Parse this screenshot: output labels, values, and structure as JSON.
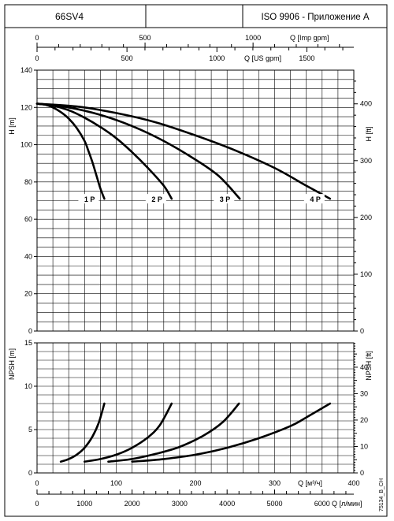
{
  "header": {
    "model": "66SV4",
    "middle": "",
    "standard": "ISO 9906 - Приложение A"
  },
  "footer_code": "75134_B_CH",
  "chart_data": [
    {
      "type": "line",
      "id": "head",
      "ylabel": "H [m]",
      "ylabel_right": "H [ft]",
      "ylim": [
        0,
        140
      ],
      "yticks": [
        0,
        20,
        40,
        60,
        80,
        100,
        120,
        140
      ],
      "yticks_right": [
        0,
        100,
        200,
        300,
        400
      ],
      "xlim_m3h": [
        0,
        400
      ],
      "top_axes": [
        {
          "label": "Q [Imp gpm]",
          "ticks": [
            0,
            500,
            1000
          ]
        },
        {
          "label": "Q [US gpm]",
          "ticks": [
            0,
            500,
            1000,
            1500
          ]
        }
      ],
      "grid": true,
      "series": [
        {
          "name": "1 P",
          "points": [
            [
              0,
              122
            ],
            [
              10,
              121.5
            ],
            [
              20,
              120
            ],
            [
              30,
              117.5
            ],
            [
              40,
              114
            ],
            [
              50,
              109
            ],
            [
              60,
              102
            ],
            [
              65,
              96.5
            ],
            [
              70,
              90.5
            ],
            [
              75,
              83.5
            ],
            [
              80,
              76.5
            ],
            [
              85,
              71
            ]
          ]
        },
        {
          "name": "2 P",
          "points": [
            [
              0,
              122
            ],
            [
              20,
              121
            ],
            [
              40,
              118.5
            ],
            [
              60,
              114.5
            ],
            [
              80,
              109.5
            ],
            [
              100,
              103.5
            ],
            [
              120,
              96
            ],
            [
              140,
              87.5
            ],
            [
              160,
              78
            ],
            [
              170,
              71
            ]
          ]
        },
        {
          "name": "3 P",
          "points": [
            [
              0,
              122
            ],
            [
              40,
              120
            ],
            [
              80,
              116
            ],
            [
              120,
              110
            ],
            [
              160,
              102
            ],
            [
              200,
              92
            ],
            [
              230,
              83
            ],
            [
              256,
              71
            ]
          ]
        },
        {
          "name": "4 P",
          "points": [
            [
              0,
              122
            ],
            [
              50,
              120.5
            ],
            [
              100,
              117
            ],
            [
              150,
              112
            ],
            [
              200,
              105
            ],
            [
              250,
              97
            ],
            [
              300,
              87.5
            ],
            [
              340,
              78
            ],
            [
              370,
              71
            ]
          ]
        }
      ]
    },
    {
      "type": "line",
      "id": "npsh",
      "ylabel": "NPSH [m]",
      "ylabel_right": "NPSH [ft]",
      "ylim": [
        0,
        15
      ],
      "yticks": [
        0,
        5,
        10,
        15
      ],
      "yticks_right": [
        0,
        10,
        20,
        30,
        40
      ],
      "xlabel": "Q [м³/ч]",
      "xticks": [
        0,
        100,
        200,
        300,
        400
      ],
      "xlabel2": "Q [л/мин]",
      "xticks2": [
        0,
        1000,
        2000,
        3000,
        4000,
        5000,
        6000
      ],
      "grid": true,
      "series": [
        {
          "name": "1 P",
          "points": [
            [
              30,
              1.3
            ],
            [
              40,
              1.6
            ],
            [
              50,
              2.1
            ],
            [
              60,
              2.9
            ],
            [
              70,
              4.2
            ],
            [
              78,
              5.8
            ],
            [
              85,
              8
            ]
          ]
        },
        {
          "name": "2 P",
          "points": [
            [
              60,
              1.3
            ],
            [
              80,
              1.6
            ],
            [
              100,
              2.1
            ],
            [
              120,
              2.9
            ],
            [
              140,
              4.1
            ],
            [
              155,
              5.5
            ],
            [
              170,
              8
            ]
          ]
        },
        {
          "name": "3 P",
          "points": [
            [
              90,
              1.3
            ],
            [
              120,
              1.6
            ],
            [
              150,
              2.2
            ],
            [
              180,
              3
            ],
            [
              210,
              4.3
            ],
            [
              235,
              5.9
            ],
            [
              255,
              8
            ]
          ]
        },
        {
          "name": "4 P",
          "points": [
            [
              120,
              1.3
            ],
            [
              160,
              1.6
            ],
            [
              200,
              2.1
            ],
            [
              240,
              2.9
            ],
            [
              280,
              4
            ],
            [
              320,
              5.4
            ],
            [
              340,
              6.4
            ],
            [
              370,
              8
            ]
          ]
        }
      ]
    }
  ]
}
